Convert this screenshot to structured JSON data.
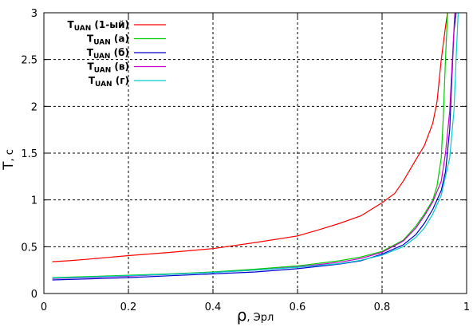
{
  "chart_data": {
    "type": "line",
    "xlabel": {
      "symbol": "ρ",
      "unit": ", Эрл"
    },
    "ylabel": {
      "symbol": "T",
      "unit": ", c"
    },
    "xlim": [
      0,
      1
    ],
    "ylim": [
      0,
      3
    ],
    "x_ticks": [
      "0",
      "0.2",
      "0.4",
      "0.6",
      "0.8",
      "1"
    ],
    "y_ticks": [
      "0",
      "0.5",
      "1",
      "1.5",
      "2",
      "2.5",
      "3"
    ],
    "grid": true,
    "legend_position": "top-left",
    "series": [
      {
        "name": "T",
        "subscript": "UAN",
        "suffix": " (1-ый)",
        "color": "#ff0000",
        "points": [
          [
            0.02,
            0.34
          ],
          [
            0.06,
            0.35
          ],
          [
            0.1,
            0.365
          ],
          [
            0.15,
            0.385
          ],
          [
            0.2,
            0.405
          ],
          [
            0.3,
            0.44
          ],
          [
            0.4,
            0.48
          ],
          [
            0.5,
            0.545
          ],
          [
            0.6,
            0.615
          ],
          [
            0.65,
            0.68
          ],
          [
            0.7,
            0.75
          ],
          [
            0.75,
            0.83
          ],
          [
            0.8,
            0.97
          ],
          [
            0.83,
            1.07
          ],
          [
            0.85,
            1.2
          ],
          [
            0.88,
            1.43
          ],
          [
            0.9,
            1.58
          ],
          [
            0.92,
            1.82
          ],
          [
            0.93,
            2.05
          ],
          [
            0.94,
            2.5
          ],
          [
            0.95,
            2.85
          ],
          [
            0.955,
            3.0
          ]
        ]
      },
      {
        "name": "T",
        "subscript": "UAN",
        "suffix": " (а)",
        "color": "#00cc00",
        "points": [
          [
            0.02,
            0.17
          ],
          [
            0.1,
            0.18
          ],
          [
            0.2,
            0.195
          ],
          [
            0.3,
            0.21
          ],
          [
            0.4,
            0.23
          ],
          [
            0.5,
            0.26
          ],
          [
            0.6,
            0.295
          ],
          [
            0.7,
            0.35
          ],
          [
            0.75,
            0.39
          ],
          [
            0.8,
            0.45
          ],
          [
            0.85,
            0.57
          ],
          [
            0.88,
            0.72
          ],
          [
            0.9,
            0.85
          ],
          [
            0.92,
            1.0
          ],
          [
            0.93,
            1.15
          ],
          [
            0.94,
            1.45
          ],
          [
            0.945,
            1.9
          ],
          [
            0.95,
            2.5
          ],
          [
            0.955,
            3.0
          ]
        ]
      },
      {
        "name": "T",
        "subscript": "UAN",
        "suffix": " (б)",
        "color": "#0000cc",
        "points": [
          [
            0.02,
            0.145
          ],
          [
            0.1,
            0.155
          ],
          [
            0.2,
            0.17
          ],
          [
            0.3,
            0.19
          ],
          [
            0.4,
            0.21
          ],
          [
            0.5,
            0.23
          ],
          [
            0.6,
            0.265
          ],
          [
            0.7,
            0.315
          ],
          [
            0.75,
            0.35
          ],
          [
            0.8,
            0.42
          ],
          [
            0.85,
            0.52
          ],
          [
            0.88,
            0.63
          ],
          [
            0.9,
            0.75
          ],
          [
            0.92,
            0.9
          ],
          [
            0.94,
            1.1
          ],
          [
            0.95,
            1.3
          ],
          [
            0.96,
            1.75
          ],
          [
            0.965,
            2.3
          ],
          [
            0.97,
            2.8
          ],
          [
            0.975,
            3.0
          ]
        ]
      },
      {
        "name": "T",
        "subscript": "UAN",
        "suffix": " (в)",
        "color": "#cc00cc",
        "points": [
          [
            0.02,
            0.16
          ],
          [
            0.1,
            0.17
          ],
          [
            0.2,
            0.185
          ],
          [
            0.3,
            0.205
          ],
          [
            0.4,
            0.225
          ],
          [
            0.5,
            0.25
          ],
          [
            0.6,
            0.285
          ],
          [
            0.7,
            0.335
          ],
          [
            0.75,
            0.375
          ],
          [
            0.8,
            0.44
          ],
          [
            0.85,
            0.56
          ],
          [
            0.88,
            0.7
          ],
          [
            0.9,
            0.83
          ],
          [
            0.92,
            0.98
          ],
          [
            0.94,
            1.2
          ],
          [
            0.95,
            1.5
          ],
          [
            0.96,
            1.95
          ],
          [
            0.965,
            2.4
          ],
          [
            0.972,
            3.0
          ]
        ]
      },
      {
        "name": "T",
        "subscript": "UAN",
        "suffix": " (г)",
        "color": "#00cccc",
        "points": [
          [
            0.02,
            0.165
          ],
          [
            0.1,
            0.175
          ],
          [
            0.2,
            0.19
          ],
          [
            0.3,
            0.205
          ],
          [
            0.4,
            0.225
          ],
          [
            0.5,
            0.25
          ],
          [
            0.6,
            0.28
          ],
          [
            0.7,
            0.32
          ],
          [
            0.75,
            0.355
          ],
          [
            0.8,
            0.41
          ],
          [
            0.85,
            0.5
          ],
          [
            0.88,
            0.6
          ],
          [
            0.9,
            0.7
          ],
          [
            0.92,
            0.85
          ],
          [
            0.94,
            1.05
          ],
          [
            0.96,
            1.45
          ],
          [
            0.97,
            1.95
          ],
          [
            0.975,
            2.5
          ],
          [
            0.98,
            3.0
          ]
        ]
      }
    ]
  }
}
